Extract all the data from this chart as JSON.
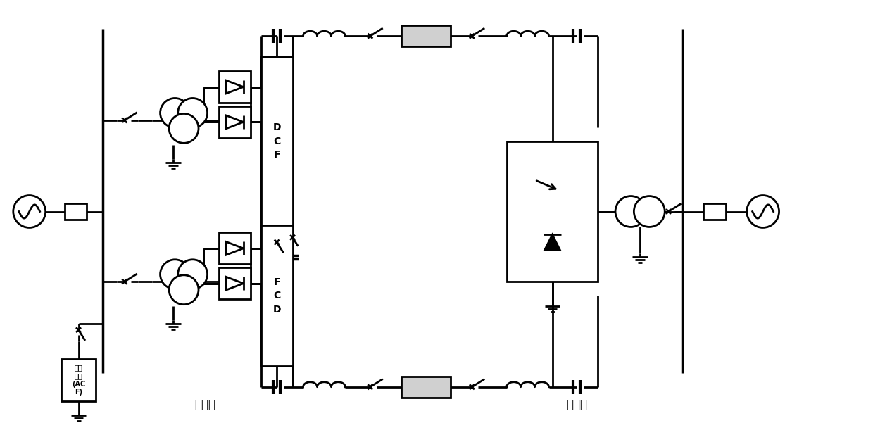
{
  "bg_color": "#ffffff",
  "lc": "#000000",
  "lw": 2.0,
  "fig_width": 12.4,
  "fig_height": 6.01,
  "label_zhengliuzhan": "整流站",
  "label_nibianzhang": "逆变站",
  "label_dcf": "D\nC\nF",
  "label_fcd": "F\nC\nD",
  "label_acf": "滤波\n元件\n(AC\nF)"
}
